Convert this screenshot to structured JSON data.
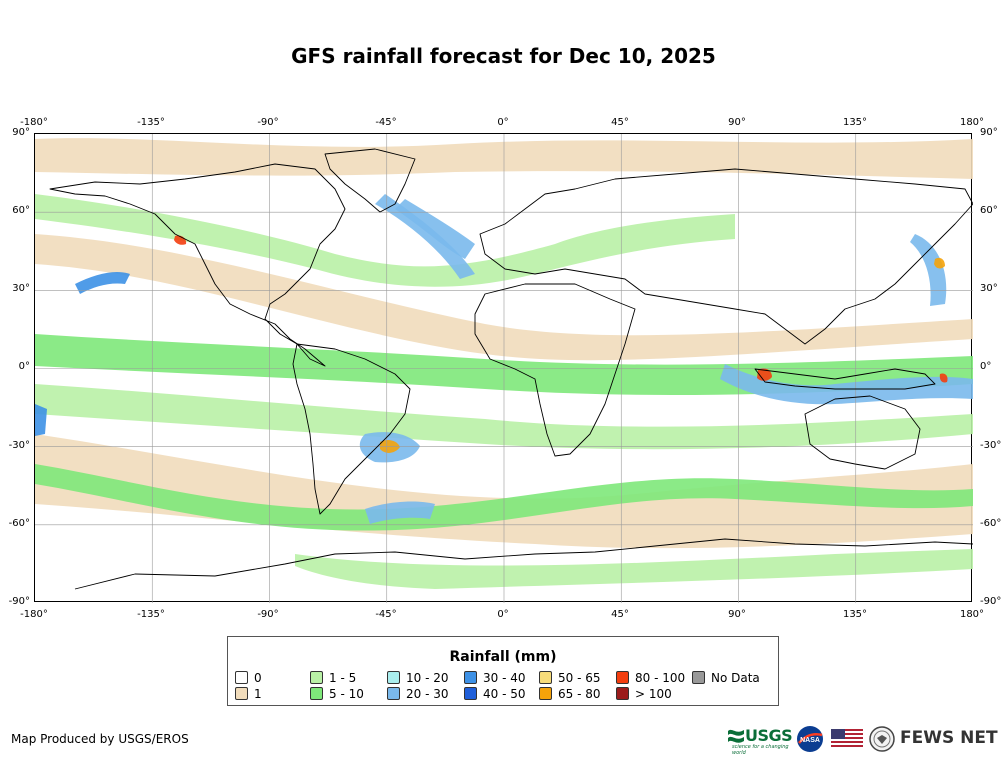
{
  "title": "GFS rainfall forecast for Dec 10, 2025",
  "axes": {
    "lon_ticks": [
      "-180°",
      "-135°",
      "-90°",
      "-45°",
      "0°",
      "45°",
      "90°",
      "135°",
      "180°"
    ],
    "lat_ticks": [
      "90°",
      "60°",
      "30°",
      "0°",
      "-30°",
      "-60°",
      "-90°"
    ]
  },
  "legend": {
    "title": "Rainfall (mm)",
    "items": [
      {
        "label": "0",
        "color": "#ffffff"
      },
      {
        "label": "1",
        "color": "#f1dcbb"
      },
      {
        "label": "1 - 5",
        "color": "#b9f1a6"
      },
      {
        "label": "5 - 10",
        "color": "#7ee87a"
      },
      {
        "label": "10 - 20",
        "color": "#aaeeee"
      },
      {
        "label": "20 - 30",
        "color": "#7ab9ec"
      },
      {
        "label": "30 - 40",
        "color": "#3d91e6"
      },
      {
        "label": "40 - 50",
        "color": "#1f5fd9"
      },
      {
        "label": "50 - 65",
        "color": "#f7dc7a"
      },
      {
        "label": "65 - 80",
        "color": "#f5a30a"
      },
      {
        "label": "80 - 100",
        "color": "#f33e0f"
      },
      {
        "label": "> 100",
        "color": "#9b1c1c"
      },
      {
        "label": "No Data",
        "color": "#999999"
      }
    ]
  },
  "credit": "Map Produced by USGS/EROS",
  "logos": {
    "usgs": "USGS",
    "usgs_tagline": "science for a changing world",
    "nasa": "NASA",
    "flag": "us-flag",
    "seal": "state-department-seal",
    "fews": "FEWS NET"
  }
}
